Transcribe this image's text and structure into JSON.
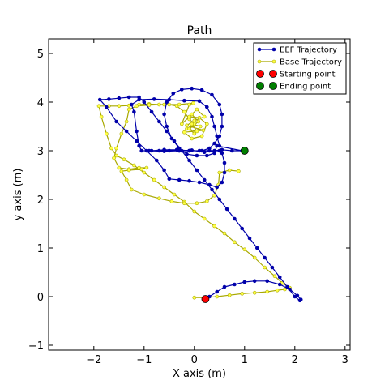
{
  "chart_data": {
    "type": "line",
    "title": "Path",
    "xlabel": "X axis (m)",
    "ylabel": "y axis (m)",
    "xlim": [
      -2.9,
      3.1
    ],
    "ylim": [
      -1.1,
      5.3
    ],
    "xticks": [
      -2,
      -1,
      0,
      1,
      2,
      3
    ],
    "yticks": [
      -1,
      0,
      1,
      2,
      3,
      4,
      5
    ],
    "grid": false,
    "legend_position": "top-right",
    "legend": [
      {
        "label": "EEF Trajectory",
        "kind": "line",
        "color": "#0000aa",
        "marker": "#0000aa"
      },
      {
        "label": "Base Trajectory",
        "kind": "line",
        "color": "#a8a800",
        "marker": "#ffff44"
      },
      {
        "label": "Starting point",
        "kind": "point",
        "color": "#ff0000"
      },
      {
        "label": "Ending point",
        "kind": "point",
        "color": "#007f00"
      }
    ],
    "series": [
      {
        "name": "EEF Trajectory",
        "color": "#0000aa",
        "marker_color": "#0000aa",
        "points": [
          [
            0.22,
            -0.05
          ],
          [
            0.3,
            0.0
          ],
          [
            0.45,
            0.1
          ],
          [
            0.6,
            0.2
          ],
          [
            0.8,
            0.25
          ],
          [
            1.0,
            0.3
          ],
          [
            1.2,
            0.32
          ],
          [
            1.45,
            0.32
          ],
          [
            1.7,
            0.25
          ],
          [
            1.9,
            0.15
          ],
          [
            2.05,
            0.02
          ],
          [
            2.12,
            -0.06
          ],
          [
            2.1,
            -0.08
          ],
          [
            2.0,
            0.0
          ],
          [
            1.85,
            0.2
          ],
          [
            1.7,
            0.4
          ],
          [
            1.55,
            0.6
          ],
          [
            1.4,
            0.8
          ],
          [
            1.25,
            1.0
          ],
          [
            1.1,
            1.2
          ],
          [
            0.95,
            1.4
          ],
          [
            0.8,
            1.6
          ],
          [
            0.65,
            1.8
          ],
          [
            0.5,
            2.0
          ],
          [
            0.35,
            2.2
          ],
          [
            0.2,
            2.4
          ],
          [
            0.05,
            2.6
          ],
          [
            -0.1,
            2.8
          ],
          [
            -0.25,
            3.0
          ],
          [
            -0.4,
            3.2
          ],
          [
            -0.55,
            3.4
          ],
          [
            -0.7,
            3.6
          ],
          [
            -0.85,
            3.8
          ],
          [
            -1.0,
            4.0
          ],
          [
            -1.1,
            4.1
          ],
          [
            -1.3,
            4.1
          ],
          [
            -1.5,
            4.08
          ],
          [
            -1.7,
            4.06
          ],
          [
            -1.88,
            4.05
          ],
          [
            -1.75,
            3.9
          ],
          [
            -1.55,
            3.6
          ],
          [
            -1.35,
            3.4
          ],
          [
            -1.15,
            3.2
          ],
          [
            -0.95,
            3.0
          ],
          [
            -0.75,
            2.8
          ],
          [
            -0.6,
            2.6
          ],
          [
            -0.5,
            2.42
          ],
          [
            -0.3,
            2.4
          ],
          [
            -0.1,
            2.38
          ],
          [
            0.1,
            2.35
          ],
          [
            0.3,
            2.3
          ],
          [
            0.45,
            2.25
          ],
          [
            0.55,
            2.35
          ],
          [
            0.6,
            2.55
          ],
          [
            0.6,
            2.75
          ],
          [
            0.55,
            2.95
          ],
          [
            0.5,
            3.0
          ],
          [
            0.3,
            3.0
          ],
          [
            0.1,
            3.0
          ],
          [
            -0.1,
            3.0
          ],
          [
            -0.3,
            3.0
          ],
          [
            -0.5,
            3.0
          ],
          [
            -0.7,
            3.0
          ],
          [
            -0.9,
            3.0
          ],
          [
            -0.6,
            2.99
          ],
          [
            -0.3,
            3.0
          ],
          [
            -0.05,
            3.01
          ],
          [
            0.2,
            2.97
          ],
          [
            0.4,
            3.0
          ],
          [
            0.55,
            3.02
          ],
          [
            0.75,
            3.0
          ],
          [
            0.95,
            3.0
          ],
          [
            0.45,
            3.1
          ],
          [
            0.4,
            2.95
          ],
          [
            0.25,
            2.9
          ],
          [
            0.05,
            2.9
          ],
          [
            -0.15,
            2.93
          ],
          [
            -0.3,
            3.05
          ],
          [
            -0.45,
            3.25
          ],
          [
            -0.55,
            3.5
          ],
          [
            -0.6,
            3.75
          ],
          [
            -0.55,
            4.0
          ],
          [
            -0.42,
            4.18
          ],
          [
            -0.25,
            4.26
          ],
          [
            -0.05,
            4.28
          ],
          [
            0.15,
            4.25
          ],
          [
            0.35,
            4.15
          ],
          [
            0.5,
            3.95
          ],
          [
            0.55,
            3.75
          ],
          [
            0.55,
            3.5
          ],
          [
            0.5,
            3.3
          ],
          [
            0.4,
            3.15
          ],
          [
            0.3,
            3.05
          ],
          [
            0.15,
            3.0
          ],
          [
            -0.1,
            3.0
          ],
          [
            -0.35,
            3.02
          ],
          [
            -0.6,
            3.02
          ],
          [
            -0.85,
            3.0
          ],
          [
            -1.05,
            3.0
          ],
          [
            -1.1,
            3.1
          ],
          [
            -1.15,
            3.4
          ],
          [
            -1.2,
            3.8
          ],
          [
            -1.25,
            3.95
          ],
          [
            -1.1,
            4.05
          ],
          [
            -0.8,
            4.06
          ],
          [
            -0.5,
            4.05
          ],
          [
            -0.2,
            4.03
          ],
          [
            0.1,
            4.02
          ],
          [
            0.25,
            3.9
          ],
          [
            0.35,
            3.7
          ],
          [
            0.4,
            3.5
          ],
          [
            0.45,
            3.3
          ],
          [
            0.5,
            3.1
          ]
        ]
      },
      {
        "name": "Base Trajectory",
        "color": "#a8a800",
        "marker_color": "#ffff44",
        "points": [
          [
            0.0,
            -0.02
          ],
          [
            0.2,
            -0.02
          ],
          [
            0.45,
            0.0
          ],
          [
            0.7,
            0.03
          ],
          [
            0.95,
            0.06
          ],
          [
            1.2,
            0.08
          ],
          [
            1.45,
            0.1
          ],
          [
            1.65,
            0.13
          ],
          [
            1.8,
            0.15
          ],
          [
            1.9,
            0.18
          ],
          [
            1.75,
            0.28
          ],
          [
            1.6,
            0.42
          ],
          [
            1.4,
            0.6
          ],
          [
            1.2,
            0.8
          ],
          [
            1.0,
            0.97
          ],
          [
            0.8,
            1.12
          ],
          [
            0.6,
            1.3
          ],
          [
            0.4,
            1.45
          ],
          [
            0.2,
            1.6
          ],
          [
            0.0,
            1.75
          ],
          [
            -0.2,
            1.95
          ],
          [
            -0.4,
            2.1
          ],
          [
            -0.6,
            2.25
          ],
          [
            -0.8,
            2.4
          ],
          [
            -1.0,
            2.55
          ],
          [
            -1.2,
            2.7
          ],
          [
            -1.4,
            2.82
          ],
          [
            -1.55,
            2.9
          ],
          [
            -1.65,
            3.05
          ],
          [
            -1.75,
            3.35
          ],
          [
            -1.85,
            3.7
          ],
          [
            -1.9,
            3.92
          ],
          [
            -1.7,
            3.92
          ],
          [
            -1.5,
            3.92
          ],
          [
            -1.3,
            3.93
          ],
          [
            -1.1,
            3.95
          ],
          [
            -0.9,
            3.96
          ],
          [
            -0.7,
            3.95
          ],
          [
            -0.5,
            3.95
          ],
          [
            -0.35,
            3.92
          ],
          [
            -0.2,
            3.8
          ],
          [
            -0.1,
            3.65
          ],
          [
            0.0,
            3.55
          ],
          [
            -0.15,
            3.45
          ],
          [
            0.05,
            3.4
          ],
          [
            -0.05,
            3.55
          ],
          [
            0.12,
            3.5
          ],
          [
            0.0,
            3.35
          ],
          [
            -0.1,
            3.45
          ],
          [
            0.08,
            3.6
          ],
          [
            -0.05,
            3.75
          ],
          [
            0.05,
            3.85
          ],
          [
            0.2,
            3.7
          ],
          [
            0.0,
            3.62
          ],
          [
            -0.15,
            3.52
          ],
          [
            0.18,
            3.42
          ],
          [
            -0.2,
            3.38
          ],
          [
            -0.05,
            3.25
          ],
          [
            0.15,
            3.3
          ],
          [
            0.25,
            3.55
          ],
          [
            0.1,
            3.68
          ],
          [
            -0.1,
            3.7
          ],
          [
            -0.25,
            3.55
          ],
          [
            -0.1,
            3.95
          ],
          [
            -0.02,
            3.98
          ],
          [
            -0.3,
            3.95
          ],
          [
            -0.6,
            3.95
          ],
          [
            -0.9,
            3.94
          ],
          [
            -1.15,
            3.92
          ],
          [
            -1.3,
            3.85
          ],
          [
            -1.35,
            3.6
          ],
          [
            -1.45,
            3.35
          ],
          [
            -1.55,
            3.05
          ],
          [
            -1.6,
            2.85
          ],
          [
            -1.5,
            2.65
          ],
          [
            -1.3,
            2.62
          ],
          [
            -1.1,
            2.65
          ],
          [
            -0.95,
            2.65
          ],
          [
            -1.05,
            2.62
          ],
          [
            -1.3,
            2.6
          ],
          [
            -1.45,
            2.58
          ],
          [
            -1.35,
            2.4
          ],
          [
            -1.25,
            2.2
          ],
          [
            -1.0,
            2.1
          ],
          [
            -0.7,
            2.02
          ],
          [
            -0.45,
            1.96
          ],
          [
            -0.2,
            1.92
          ],
          [
            0.05,
            1.92
          ],
          [
            0.25,
            1.96
          ],
          [
            0.4,
            2.08
          ],
          [
            0.48,
            2.3
          ],
          [
            0.5,
            2.55
          ],
          [
            0.7,
            2.6
          ],
          [
            0.88,
            2.58
          ]
        ]
      }
    ],
    "markers": [
      {
        "name": "Starting point",
        "x": 0.22,
        "y": -0.05,
        "color": "#ff0000"
      },
      {
        "name": "Ending point",
        "x": 1.0,
        "y": 3.0,
        "color": "#007f00"
      }
    ]
  }
}
